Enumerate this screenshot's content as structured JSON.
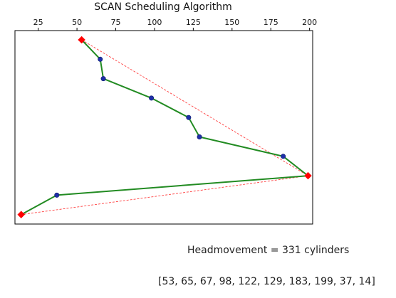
{
  "chart_data": {
    "type": "line",
    "title": "SCAN Scheduling Algorithm",
    "xlabel": "",
    "ylabel": "",
    "xlim": [
      10,
      202
    ],
    "x_axis_position": "top",
    "x_ticks": [
      25,
      50,
      75,
      100,
      125,
      150,
      175,
      200
    ],
    "y_axis_hidden": true,
    "grid": false,
    "series": [
      {
        "role": "head-path",
        "color": "#228b22",
        "marker_color": "#1f2fa8",
        "marker": "circle",
        "points": [
          {
            "x": 53,
            "step": 0
          },
          {
            "x": 65,
            "step": 1
          },
          {
            "x": 67,
            "step": 2
          },
          {
            "x": 98,
            "step": 3
          },
          {
            "x": 122,
            "step": 4
          },
          {
            "x": 129,
            "step": 5
          },
          {
            "x": 183,
            "step": 6
          },
          {
            "x": 199,
            "step": 7
          },
          {
            "x": 37,
            "step": 8
          },
          {
            "x": 14,
            "step": 9
          }
        ]
      },
      {
        "role": "extremes-guide",
        "color": "#ff4040",
        "style": "dashed",
        "marker": "diamond",
        "marker_color": "#ff0000",
        "points": [
          {
            "x": 53,
            "step": 0
          },
          {
            "x": 199,
            "step": 7
          },
          {
            "x": 14,
            "step": 9
          }
        ]
      }
    ]
  },
  "captions": {
    "headmovement": "Headmovement = 331 cylinders",
    "sequence": "[53, 65, 67, 98, 122, 129, 183, 199, 37, 14]"
  }
}
